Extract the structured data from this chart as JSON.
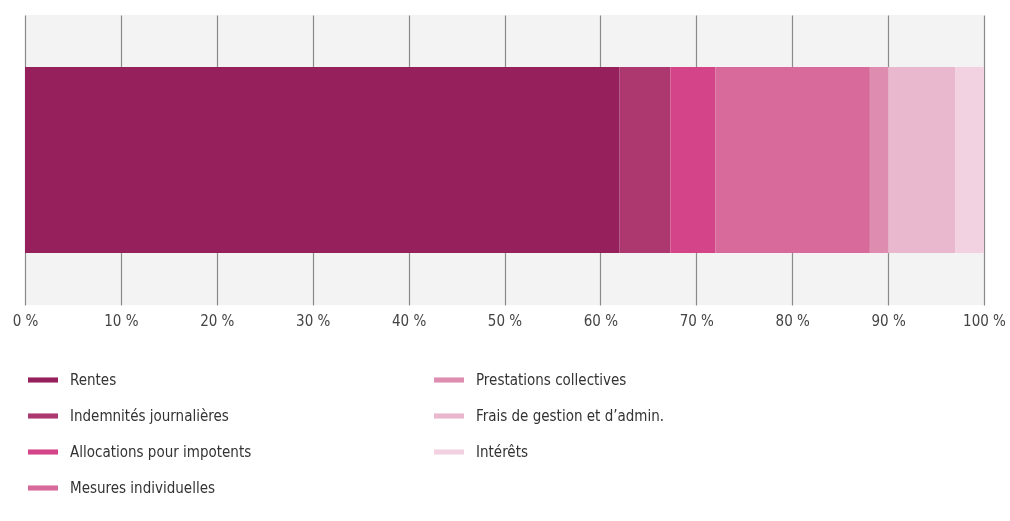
{
  "chart_data": {
    "type": "bar",
    "orientation": "horizontal",
    "stacked": true,
    "categories": [
      null
    ],
    "series": [
      {
        "name": "Rentes",
        "color": "#96205c",
        "values": [
          62
        ]
      },
      {
        "name": "Indemnités journalières",
        "color": "#ac386f",
        "values": [
          5.3
        ]
      },
      {
        "name": "Allocations pour impotents",
        "color": "#d44488",
        "values": [
          4.7
        ]
      },
      {
        "name": "Mesures individuelles",
        "color": "#d76a9a",
        "values": [
          16.1
        ]
      },
      {
        "name": "Prestations collectives",
        "color": "#de8cb0",
        "values": [
          1.9
        ]
      },
      {
        "name": "Frais de gestion et d’admin.",
        "color": "#eab8ce",
        "values": [
          7
        ]
      },
      {
        "name": "Intérêts",
        "color": "#f2d1e0",
        "values": [
          3
        ]
      }
    ],
    "xlim": [
      0,
      100
    ],
    "xticks": [
      {
        "value": 0,
        "label": "0 %"
      },
      {
        "value": 10,
        "label": "10 %"
      },
      {
        "value": 20,
        "label": "20 %"
      },
      {
        "value": 30,
        "label": "30 %"
      },
      {
        "value": 40,
        "label": "40 %"
      },
      {
        "value": 50,
        "label": "50 %"
      },
      {
        "value": 60,
        "label": "60 %"
      },
      {
        "value": 70,
        "label": "70 %"
      },
      {
        "value": 80,
        "label": "80 %"
      },
      {
        "value": 90,
        "label": "90 %"
      },
      {
        "value": 100,
        "label": "100 %"
      }
    ],
    "grid": "x",
    "legend": "bottom",
    "tick_labels": "x"
  }
}
